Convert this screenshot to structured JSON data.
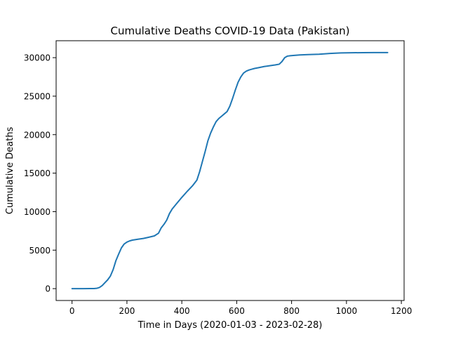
{
  "chart_data": {
    "type": "line",
    "title": "Cumulative Deaths COVID-19 Data (Pakistan)",
    "xlabel": "Time in Days (2020-01-03 - 2023-02-28)",
    "ylabel": "Cumulative Deaths",
    "xlim": [
      -58,
      1210
    ],
    "ylim": [
      -1540,
      32200
    ],
    "xticks": [
      0,
      200,
      400,
      600,
      800,
      1000,
      1200
    ],
    "xtick_labels": [
      "0",
      "200",
      "400",
      "600",
      "800",
      "1000",
      "1200"
    ],
    "yticks": [
      0,
      5000,
      10000,
      15000,
      20000,
      25000,
      30000
    ],
    "ytick_labels": [
      "0",
      "5000",
      "10000",
      "15000",
      "20000",
      "25000",
      "30000"
    ],
    "grid": false,
    "line_color": "#1f77b4",
    "series": [
      {
        "name": "",
        "x": [
          0,
          40,
          80,
          90,
          100,
          110,
          120,
          130,
          140,
          150,
          160,
          170,
          180,
          190,
          200,
          210,
          220,
          240,
          260,
          280,
          300,
          315,
          320,
          325,
          335,
          345,
          355,
          365,
          380,
          400,
          420,
          440,
          455,
          465,
          475,
          485,
          495,
          505,
          515,
          525,
          535,
          545,
          555,
          565,
          575,
          585,
          595,
          605,
          615,
          625,
          635,
          645,
          655,
          665,
          680,
          700,
          720,
          740,
          755,
          765,
          775,
          785,
          795,
          810,
          830,
          860,
          900,
          940,
          980,
          1020,
          1060,
          1100,
          1150
        ],
        "y": [
          0,
          0,
          10,
          40,
          150,
          400,
          780,
          1150,
          1650,
          2500,
          3650,
          4500,
          5300,
          5800,
          6050,
          6200,
          6300,
          6420,
          6520,
          6680,
          6850,
          7200,
          7550,
          7900,
          8350,
          8900,
          9750,
          10350,
          11000,
          11850,
          12650,
          13400,
          14100,
          15200,
          16500,
          17800,
          19200,
          20200,
          21000,
          21700,
          22100,
          22400,
          22700,
          23000,
          23700,
          24700,
          25800,
          26800,
          27500,
          28000,
          28250,
          28400,
          28500,
          28600,
          28700,
          28850,
          28950,
          29050,
          29150,
          29500,
          30000,
          30200,
          30250,
          30300,
          30350,
          30400,
          30450,
          30550,
          30620,
          30640,
          30650,
          30660,
          30660
        ]
      }
    ]
  }
}
